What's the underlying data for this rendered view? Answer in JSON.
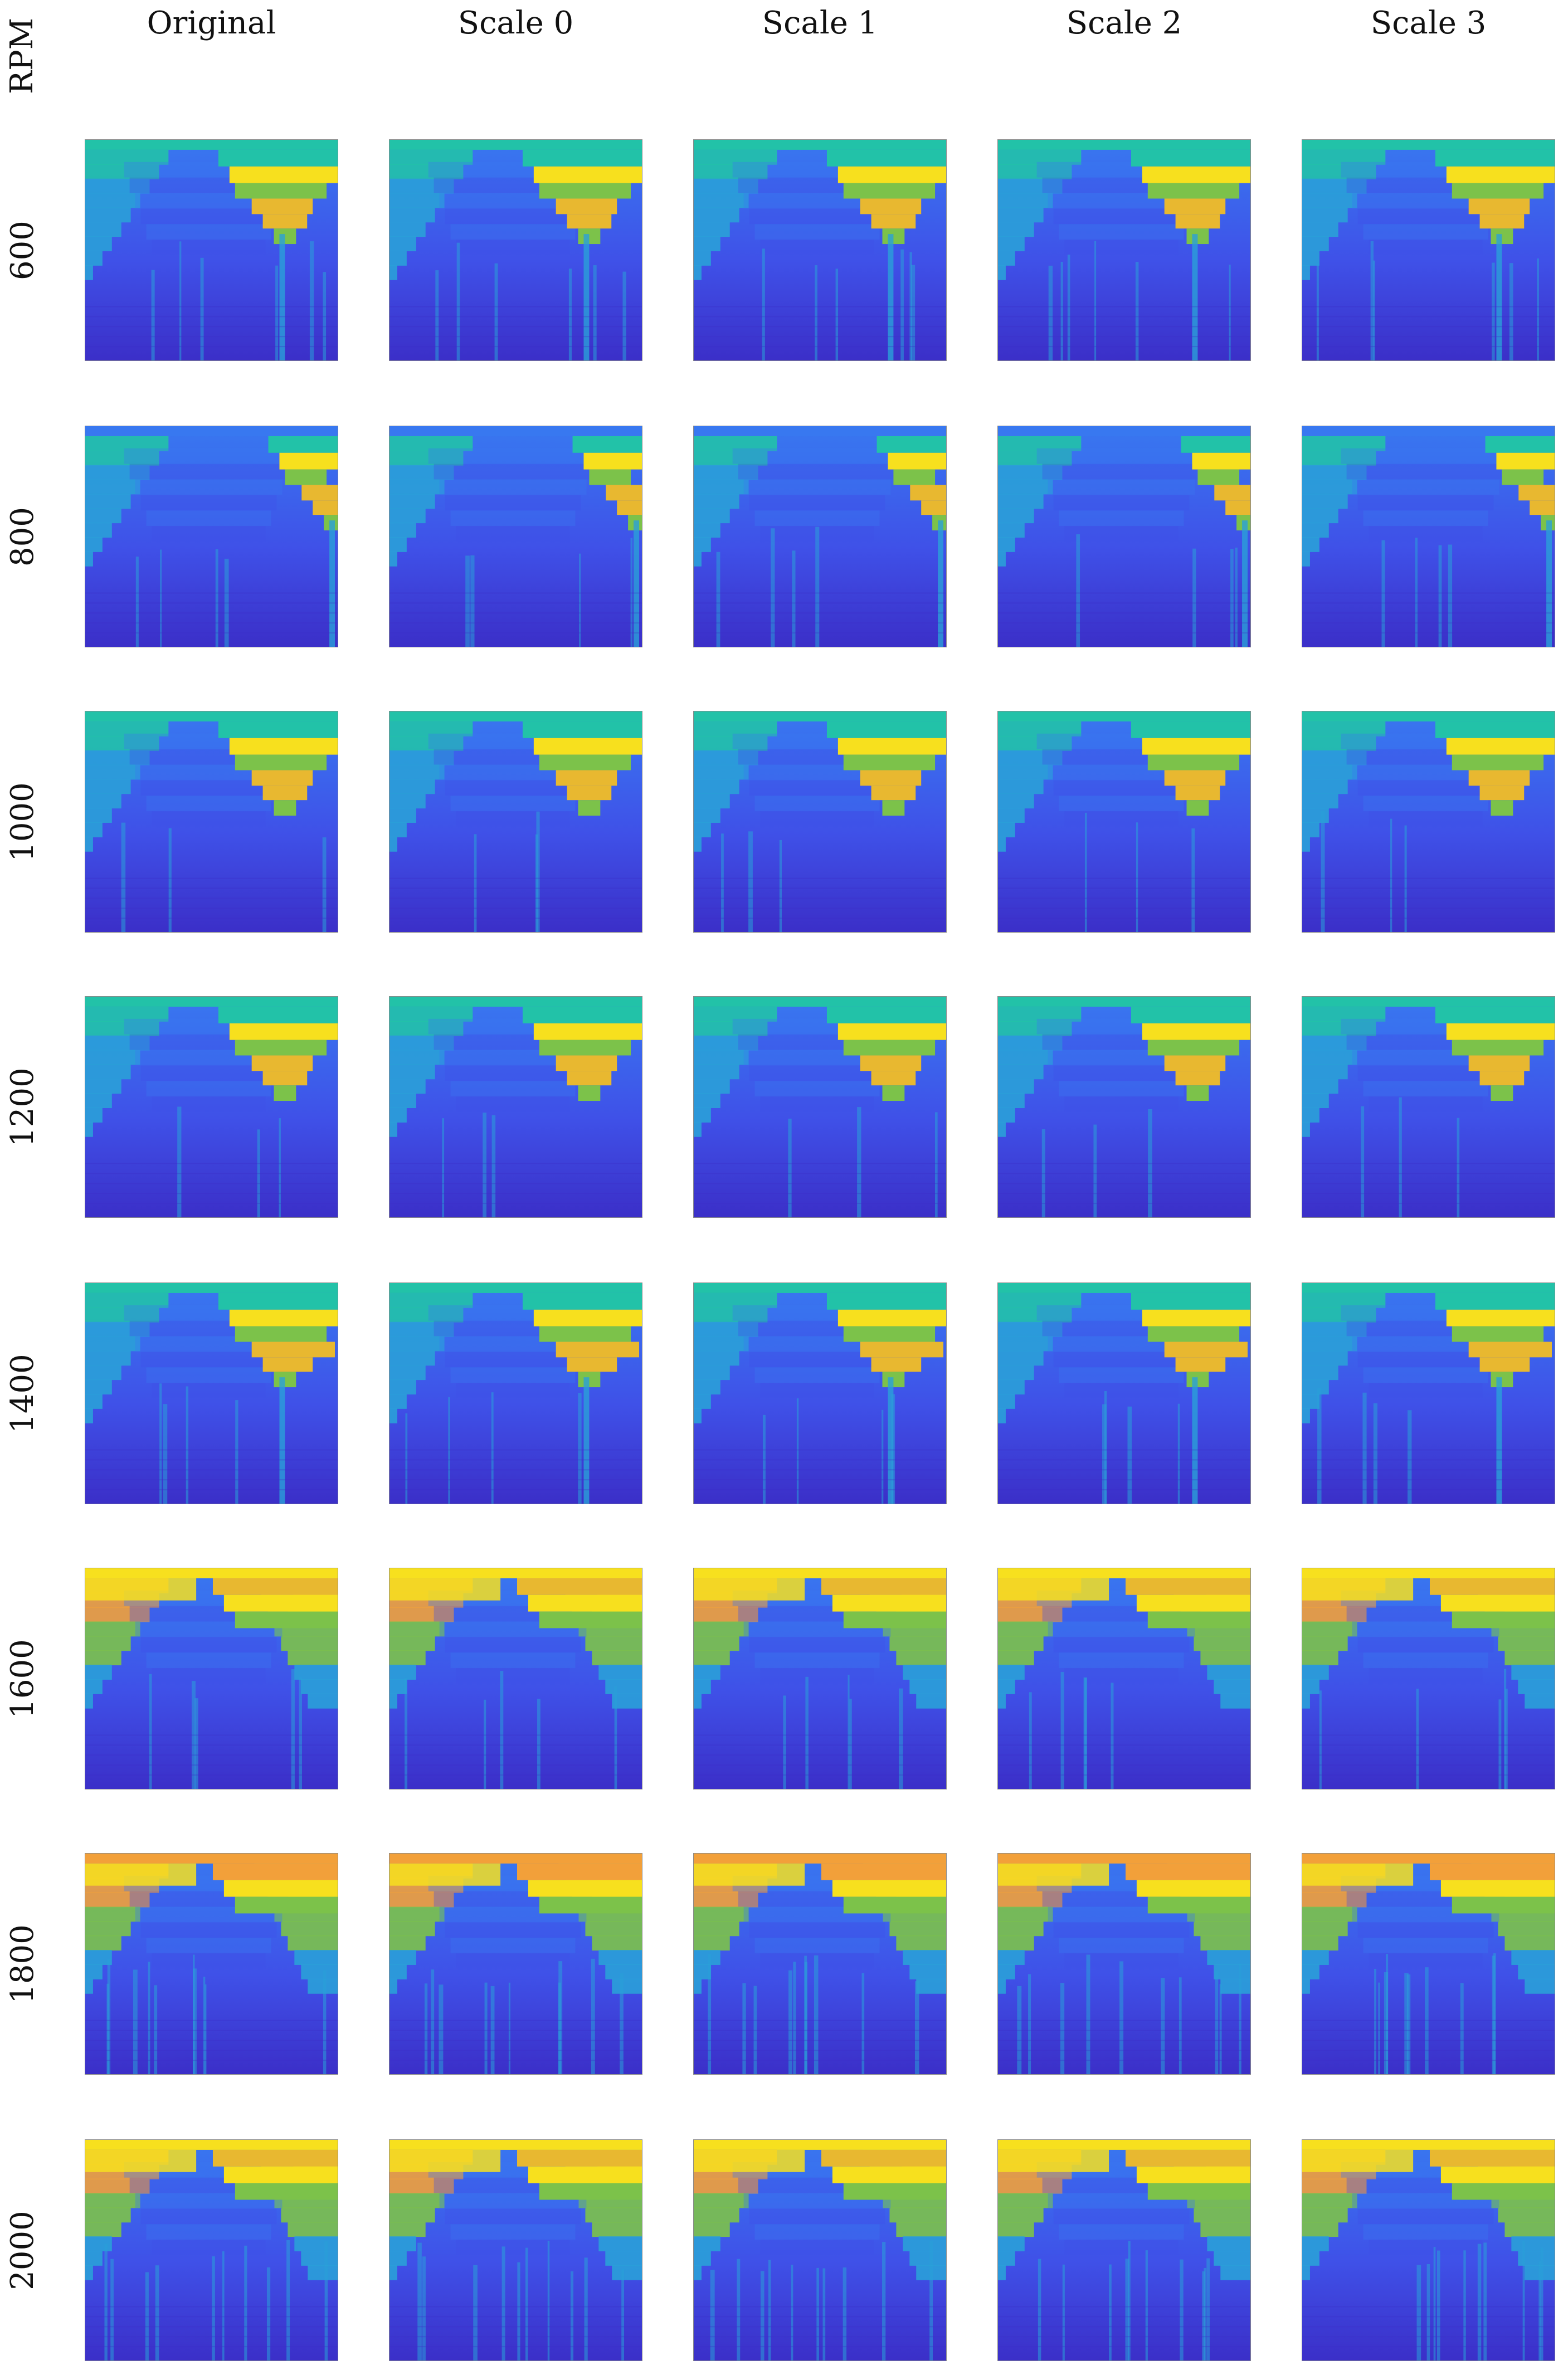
{
  "corner_label": "RPM",
  "columns": [
    "Original",
    "Scale 0",
    "Scale 1",
    "Scale 2",
    "Scale 3"
  ],
  "rows": [
    {
      "rpm": "600",
      "top": "teal",
      "hot": "right-upper",
      "spikes": "two-right"
    },
    {
      "rpm": "800",
      "top": "blue",
      "hot": "right-narrow",
      "spikes": "one-right"
    },
    {
      "rpm": "1000",
      "top": "teal",
      "hot": "right-upper",
      "spikes": "none"
    },
    {
      "rpm": "1200",
      "top": "teal",
      "hot": "right-upper",
      "spikes": "none"
    },
    {
      "rpm": "1400",
      "top": "teal",
      "hot": "right-wide",
      "spikes": "one-right"
    },
    {
      "rpm": "1600",
      "top": "yellow",
      "hot": "top-band",
      "spikes": "left"
    },
    {
      "rpm": "1800",
      "top": "orange",
      "hot": "dome",
      "spikes": "many"
    },
    {
      "rpm": "2000",
      "top": "yellow",
      "hot": "dome",
      "spikes": "many"
    }
  ],
  "colors": {
    "deep": "#3b2fc8",
    "blue": "#3f51e8",
    "mid": "#3878f0",
    "cyan": "#2aa0d8",
    "teal": "#22c2a8",
    "green": "#7cc24a",
    "gold": "#e8b830",
    "yellow": "#f7e01e",
    "orange": "#f2a03a"
  }
}
